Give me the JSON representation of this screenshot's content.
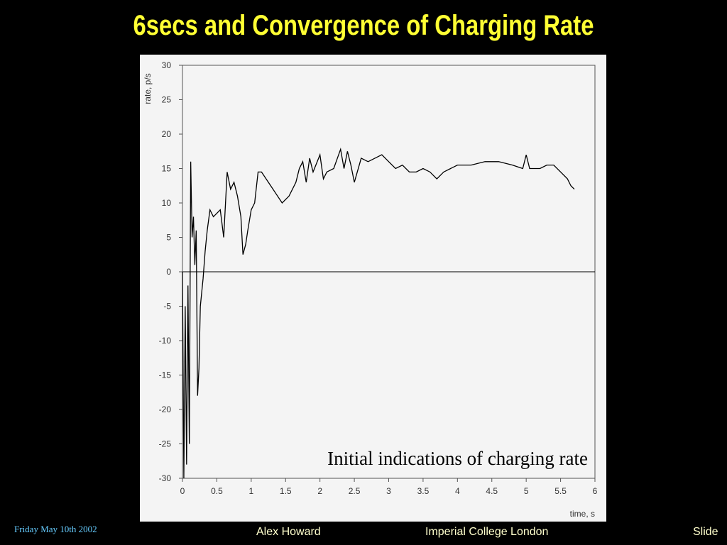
{
  "title": "6secs and Convergence of Charging Rate",
  "chart_data": {
    "type": "line",
    "x_label": "time, s",
    "y_label": "rate, p/s",
    "annotation": "Initial indications of charging rate",
    "x": [
      0,
      0.02,
      0.04,
      0.06,
      0.08,
      0.1,
      0.12,
      0.14,
      0.16,
      0.18,
      0.2,
      0.22,
      0.24,
      0.26,
      0.28,
      0.3,
      0.33,
      0.36,
      0.4,
      0.45,
      0.5,
      0.55,
      0.6,
      0.65,
      0.7,
      0.75,
      0.8,
      0.85,
      0.88,
      0.92,
      0.95,
      1.0,
      1.05,
      1.1,
      1.15,
      1.25,
      1.35,
      1.45,
      1.55,
      1.65,
      1.7,
      1.75,
      1.8,
      1.85,
      1.9,
      2.0,
      2.05,
      2.1,
      2.2,
      2.3,
      2.35,
      2.4,
      2.45,
      2.5,
      2.6,
      2.7,
      2.8,
      2.9,
      3.0,
      3.1,
      3.2,
      3.3,
      3.4,
      3.5,
      3.6,
      3.7,
      3.8,
      3.9,
      4.0,
      4.2,
      4.4,
      4.6,
      4.8,
      4.95,
      5.0,
      5.05,
      5.2,
      5.3,
      5.4,
      5.5,
      5.6,
      5.65,
      5.7
    ],
    "series": [
      {
        "name": "rate",
        "color": "#000000",
        "values": [
          0,
          -30,
          -5,
          -28,
          -2,
          -25,
          16,
          5,
          8,
          1,
          6,
          -18,
          -14,
          -5,
          -3,
          -1,
          3,
          6,
          9,
          8,
          8.5,
          9,
          5,
          14.5,
          12,
          13,
          11,
          8,
          2.5,
          4,
          6,
          9,
          10,
          14.5,
          14.5,
          13,
          11.5,
          10,
          11,
          13,
          15,
          16,
          13,
          16.5,
          14.5,
          17,
          13.5,
          14.5,
          15,
          17.8,
          15,
          17.5,
          15.5,
          13,
          16.5,
          16,
          16.5,
          17,
          16,
          15,
          15.5,
          14.5,
          14.5,
          15,
          14.5,
          13.5,
          14.5,
          15,
          15.5,
          15.5,
          16,
          16,
          15.5,
          15,
          17,
          15,
          15,
          15.5,
          15.5,
          14.5,
          13.5,
          12.5,
          12
        ]
      }
    ],
    "xlim": [
      0,
      6
    ],
    "xticks": [
      0,
      0.5,
      1,
      1.5,
      2,
      2.5,
      3,
      3.5,
      4,
      4.5,
      5,
      5.5,
      6
    ],
    "ylim": [
      -30,
      30
    ],
    "yticks": [
      -30,
      -25,
      -20,
      -15,
      -10,
      -5,
      0,
      5,
      10,
      15,
      20,
      25,
      30
    ],
    "zero_line": true
  },
  "footer": {
    "date": "Friday May 10th 2002",
    "author": "Alex Howard",
    "institution": "Imperial College London",
    "slide": "Slide"
  }
}
